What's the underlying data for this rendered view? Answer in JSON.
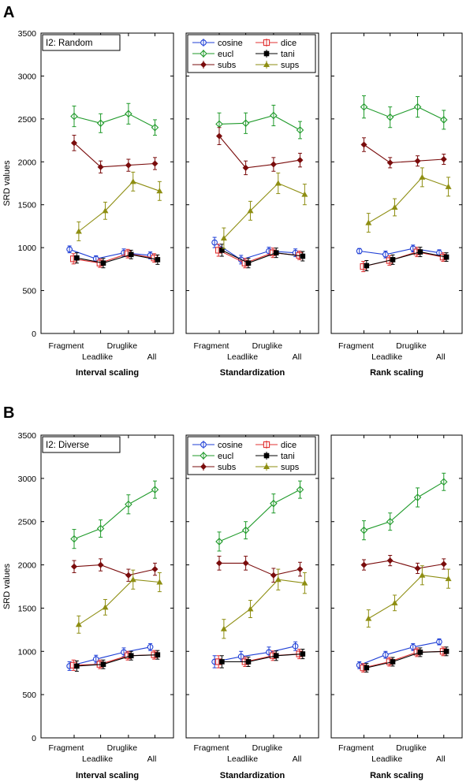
{
  "figure": {
    "ylabel": "SRD values",
    "xticks_top": [
      "Fragment",
      "Druglike"
    ],
    "xticks_bottom": [
      "Leadlike",
      "All"
    ],
    "panel_titles": [
      "Interval scaling",
      "Standardization",
      "Rank scaling"
    ],
    "yticks": [
      0,
      500,
      1000,
      1500,
      2000,
      2500,
      3000,
      3500
    ],
    "colors": {
      "cosine": "#1f3fd6",
      "dice": "#e03030",
      "eucl": "#1f9a2a",
      "tani": "#000000",
      "subs": "#7a0c0c",
      "sups": "#8e8e12"
    },
    "legend_labels": {
      "cosine": "cosine",
      "dice": "dice",
      "eucl": "eucl",
      "tani": "tani",
      "subs": "subs",
      "sups": "sups"
    }
  },
  "chart_data": [
    {
      "type": "line",
      "row_label": "A",
      "annotation": "I2: Random",
      "ylim": [
        0,
        3500
      ],
      "categories": [
        "Fragment",
        "Leadlike",
        "Druglike",
        "All"
      ],
      "panels": [
        {
          "title": "Interval scaling",
          "series": [
            {
              "name": "cosine",
              "values": [
                980,
                870,
                940,
                910
              ],
              "err": [
                40,
                35,
                45,
                40
              ]
            },
            {
              "name": "dice",
              "values": [
                870,
                820,
                930,
                880
              ],
              "err": [
                60,
                50,
                50,
                50
              ]
            },
            {
              "name": "eucl",
              "values": [
                2530,
                2450,
                2560,
                2400
              ],
              "err": [
                120,
                110,
                120,
                90
              ]
            },
            {
              "name": "tani",
              "values": [
                880,
                820,
                920,
                860
              ],
              "err": [
                60,
                55,
                50,
                55
              ]
            },
            {
              "name": "subs",
              "values": [
                2220,
                1940,
                1960,
                1980
              ],
              "err": [
                90,
                70,
                70,
                70
              ]
            },
            {
              "name": "sups",
              "values": [
                1190,
                1430,
                1770,
                1660
              ],
              "err": [
                110,
                100,
                110,
                110
              ]
            }
          ]
        },
        {
          "title": "Standardization",
          "series": [
            {
              "name": "cosine",
              "values": [
                1060,
                860,
                960,
                940
              ],
              "err": [
                60,
                50,
                45,
                45
              ]
            },
            {
              "name": "dice",
              "values": [
                970,
                820,
                940,
                910
              ],
              "err": [
                70,
                55,
                55,
                50
              ]
            },
            {
              "name": "eucl",
              "values": [
                2440,
                2450,
                2540,
                2370
              ],
              "err": [
                130,
                120,
                120,
                100
              ]
            },
            {
              "name": "tani",
              "values": [
                970,
                820,
                940,
                900
              ],
              "err": [
                70,
                55,
                55,
                55
              ]
            },
            {
              "name": "subs",
              "values": [
                2300,
                1930,
                1970,
                2020
              ],
              "err": [
                100,
                80,
                80,
                80
              ]
            },
            {
              "name": "sups",
              "values": [
                1110,
                1430,
                1750,
                1620
              ],
              "err": [
                120,
                110,
                120,
                120
              ]
            }
          ]
        },
        {
          "title": "Rank scaling",
          "series": [
            {
              "name": "cosine",
              "values": [
                960,
                920,
                990,
                940
              ],
              "err": [
                30,
                40,
                40,
                35
              ]
            },
            {
              "name": "dice",
              "values": [
                780,
                850,
                950,
                890
              ],
              "err": [
                60,
                55,
                55,
                50
              ]
            },
            {
              "name": "eucl",
              "values": [
                2640,
                2520,
                2640,
                2490
              ],
              "err": [
                130,
                120,
                120,
                110
              ]
            },
            {
              "name": "tani",
              "values": [
                790,
                860,
                950,
                890
              ],
              "err": [
                60,
                55,
                55,
                50
              ]
            },
            {
              "name": "subs",
              "values": [
                2200,
                1990,
                2010,
                2030
              ],
              "err": [
                80,
                60,
                60,
                60
              ]
            },
            {
              "name": "sups",
              "values": [
                1290,
                1470,
                1820,
                1710
              ],
              "err": [
                110,
                100,
                110,
                110
              ]
            }
          ]
        }
      ]
    },
    {
      "type": "line",
      "row_label": "B",
      "annotation": "I2: Diverse",
      "ylim": [
        0,
        3500
      ],
      "categories": [
        "Fragment",
        "Leadlike",
        "Druglike",
        "All"
      ],
      "panels": [
        {
          "title": "Interval scaling",
          "series": [
            {
              "name": "cosine",
              "values": [
                830,
                910,
                990,
                1050
              ],
              "err": [
                50,
                45,
                50,
                40
              ]
            },
            {
              "name": "dice",
              "values": [
                840,
                850,
                950,
                960
              ],
              "err": [
                60,
                50,
                50,
                50
              ]
            },
            {
              "name": "eucl",
              "values": [
                2300,
                2420,
                2700,
                2870
              ],
              "err": [
                110,
                100,
                110,
                100
              ]
            },
            {
              "name": "tani",
              "values": [
                830,
                850,
                950,
                960
              ],
              "err": [
                60,
                50,
                50,
                50
              ]
            },
            {
              "name": "subs",
              "values": [
                1980,
                2000,
                1880,
                1950
              ],
              "err": [
                70,
                70,
                70,
                70
              ]
            },
            {
              "name": "sups",
              "values": [
                1310,
                1510,
                1830,
                1800
              ],
              "err": [
                100,
                90,
                110,
                110
              ]
            }
          ]
        },
        {
          "title": "Standardization",
          "series": [
            {
              "name": "cosine",
              "values": [
                880,
                940,
                990,
                1060
              ],
              "err": [
                70,
                60,
                60,
                50
              ]
            },
            {
              "name": "dice",
              "values": [
                880,
                880,
                950,
                970
              ],
              "err": [
                70,
                55,
                55,
                55
              ]
            },
            {
              "name": "eucl",
              "values": [
                2270,
                2400,
                2710,
                2870
              ],
              "err": [
                110,
                100,
                110,
                100
              ]
            },
            {
              "name": "tani",
              "values": [
                880,
                880,
                950,
                970
              ],
              "err": [
                70,
                55,
                55,
                55
              ]
            },
            {
              "name": "subs",
              "values": [
                2020,
                2020,
                1880,
                1950
              ],
              "err": [
                80,
                80,
                80,
                80
              ]
            },
            {
              "name": "sups",
              "values": [
                1260,
                1490,
                1830,
                1790
              ],
              "err": [
                110,
                100,
                120,
                120
              ]
            }
          ]
        },
        {
          "title": "Rank scaling",
          "series": [
            {
              "name": "cosine",
              "values": [
                840,
                960,
                1050,
                1110
              ],
              "err": [
                40,
                40,
                40,
                35
              ]
            },
            {
              "name": "dice",
              "values": [
                810,
                880,
                990,
                1000
              ],
              "err": [
                50,
                50,
                50,
                50
              ]
            },
            {
              "name": "eucl",
              "values": [
                2400,
                2500,
                2780,
                2960
              ],
              "err": [
                110,
                100,
                110,
                100
              ]
            },
            {
              "name": "tani",
              "values": [
                810,
                880,
                990,
                1000
              ],
              "err": [
                50,
                50,
                50,
                50
              ]
            },
            {
              "name": "subs",
              "values": [
                2000,
                2050,
                1960,
                2010
              ],
              "err": [
                60,
                60,
                60,
                60
              ]
            },
            {
              "name": "sups",
              "values": [
                1380,
                1560,
                1880,
                1840
              ],
              "err": [
                100,
                90,
                110,
                110
              ]
            }
          ]
        }
      ]
    }
  ]
}
